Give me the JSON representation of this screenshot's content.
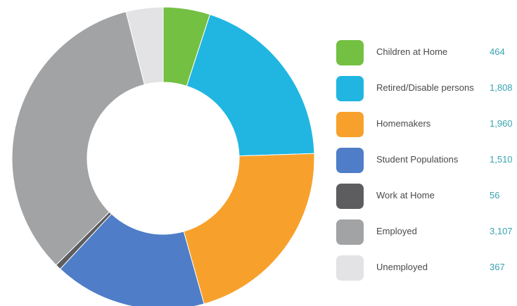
{
  "chart_data": {
    "type": "pie",
    "title": "",
    "categories": [
      "Children at Home",
      "Retired/Disable persons",
      "Homemakers",
      "Student Populations",
      "Work at Home",
      "Employed",
      "Unemployed"
    ],
    "values": [
      464,
      1808,
      1960,
      1510,
      56,
      3107,
      367
    ],
    "value_labels": [
      "464",
      "1,808",
      "1,960",
      "1,510",
      "56",
      "3,107",
      "367"
    ],
    "colors": [
      "#74c043",
      "#21b6e1",
      "#f7a12c",
      "#4f7dc7",
      "#5d5d5f",
      "#a2a3a5",
      "#e3e3e5"
    ],
    "donut": true,
    "legend_position": "right"
  }
}
